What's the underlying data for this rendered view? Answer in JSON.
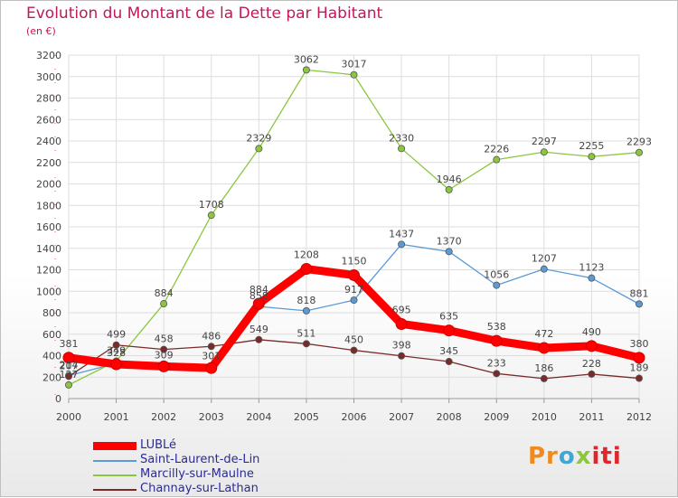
{
  "header": {
    "title": "Evolution du Montant de la Dette par Habitant",
    "subtitle": "(en €)"
  },
  "logo": {
    "parts": [
      "Pr",
      "o",
      "x",
      "iti"
    ]
  },
  "colors": {
    "title": "#c2185b",
    "lubie": "#ff0000",
    "saint_laurent": "#5b9bd5",
    "marcilly": "#8cc63f",
    "channay": "#7b2a2a",
    "axis_text": "#444444",
    "grid": "#dddddd"
  },
  "chart_data": {
    "type": "line",
    "title": "Evolution du Montant de la Dette par Habitant",
    "subtitle": "(en €)",
    "x": [
      "2000",
      "2001",
      "2002",
      "2003",
      "2004",
      "2005",
      "2006",
      "2007",
      "2008",
      "2009",
      "2010",
      "2011",
      "2012"
    ],
    "ylim": [
      0,
      3200
    ],
    "yticks": [
      0,
      200,
      400,
      600,
      800,
      1000,
      1200,
      1400,
      1600,
      1800,
      2000,
      2200,
      2400,
      2600,
      2800,
      3000,
      3200
    ],
    "grid": true,
    "legend_position": "bottom-left",
    "series": [
      {
        "name": "LUBLé",
        "color": "#ff0000",
        "style": "thick",
        "values": [
          381,
          320,
          300,
          285,
          884,
          1208,
          1150,
          695,
          635,
          538,
          472,
          490,
          380
        ],
        "labels": [
          "381",
          "",
          "",
          "",
          "884",
          "1208",
          "1150",
          "695",
          "635",
          "538",
          "472",
          "490",
          "380"
        ]
      },
      {
        "name": "Saint-Laurent-de-Lin",
        "color": "#5b9bd5",
        "style": "thin",
        "values": [
          214,
          328,
          309,
          301,
          858,
          818,
          917,
          1437,
          1370,
          1056,
          1207,
          1123,
          881
        ],
        "labels": [
          "214",
          "328",
          "309",
          "301",
          "858",
          "818",
          "917",
          "1437",
          "1370",
          "1056",
          "1207",
          "1123",
          "881"
        ]
      },
      {
        "name": "Marcilly-sur-Maulne",
        "color": "#8cc63f",
        "style": "thin",
        "values": [
          127,
          349,
          884,
          1708,
          2329,
          3062,
          3017,
          2330,
          1946,
          2226,
          2297,
          2255,
          2293
        ],
        "labels": [
          "127",
          "349",
          "884",
          "1708",
          "2329",
          "3062",
          "3017",
          "2330",
          "1946",
          "2226",
          "2297",
          "2255",
          "2293"
        ]
      },
      {
        "name": "Channay-sur-Lathan",
        "color": "#7b2a2a",
        "style": "thin",
        "values": [
          207,
          499,
          458,
          486,
          549,
          511,
          450,
          398,
          345,
          233,
          186,
          228,
          189
        ],
        "labels": [
          "207",
          "499",
          "458",
          "486",
          "549",
          "511",
          "450",
          "398",
          "345",
          "233",
          "186",
          "228",
          "189"
        ]
      }
    ]
  }
}
